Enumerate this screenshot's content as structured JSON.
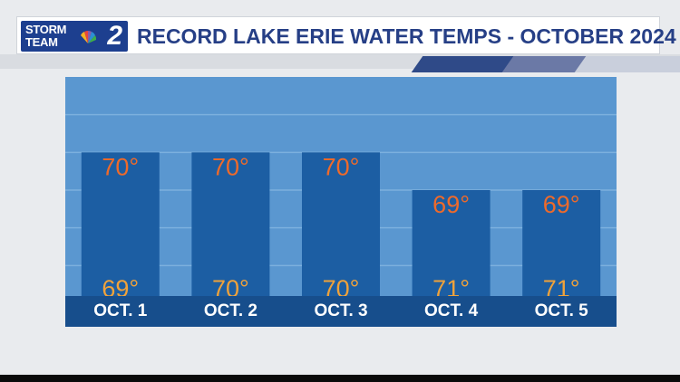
{
  "header": {
    "logo_line1": "STORM",
    "logo_line2": "TEAM",
    "logo_number": "2",
    "title": "RECORD LAKE ERIE WATER TEMPS - OCTOBER 2024"
  },
  "colors": {
    "panel_bg": "#5a97d0",
    "bar_fill": "#1c5ea3",
    "axis_band": "#174e8c",
    "upper_value": "#ef6a2a",
    "lower_value": "#f0a23a",
    "label_text": "#ffffff"
  },
  "chart_data": {
    "type": "bar",
    "title": "RECORD LAKE ERIE WATER TEMPS - OCTOBER 2024",
    "categories": [
      "OCT. 1",
      "OCT. 2",
      "OCT. 3",
      "OCT. 4",
      "OCT. 5"
    ],
    "series": [
      {
        "values": [
          70,
          70,
          70,
          69,
          69
        ]
      },
      {
        "values": [
          69,
          70,
          70,
          71,
          71
        ]
      }
    ],
    "upper_labels": [
      "70°",
      "70°",
      "70°",
      "69°",
      "69°"
    ],
    "lower_labels": [
      "69°",
      "70°",
      "70°",
      "71°",
      "71°"
    ],
    "ylim": [
      66,
      72
    ],
    "grid": true,
    "xlabel": "",
    "ylabel": ""
  }
}
